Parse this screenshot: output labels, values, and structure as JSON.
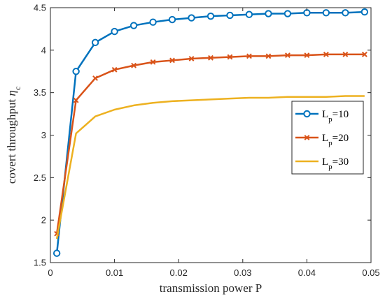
{
  "chart_data": {
    "type": "line",
    "xlabel": "transmission power P",
    "ylabel_main": "covert throughput ",
    "ylabel_symbol": "η",
    "ylabel_sub": "c",
    "xlim": [
      0,
      0.05
    ],
    "ylim": [
      1.5,
      4.5
    ],
    "xticks": [
      {
        "value": 0,
        "label": "0"
      },
      {
        "value": 0.01,
        "label": "0.01"
      },
      {
        "value": 0.02,
        "label": "0.02"
      },
      {
        "value": 0.03,
        "label": "0.03"
      },
      {
        "value": 0.04,
        "label": "0.04"
      },
      {
        "value": 0.05,
        "label": "0.05"
      }
    ],
    "yticks": [
      {
        "value": 1.5,
        "label": "1.5"
      },
      {
        "value": 2,
        "label": "2"
      },
      {
        "value": 2.5,
        "label": "2.5"
      },
      {
        "value": 3,
        "label": "3"
      },
      {
        "value": 3.5,
        "label": "3.5"
      },
      {
        "value": 4,
        "label": "4"
      },
      {
        "value": 4.5,
        "label": "4.5"
      }
    ],
    "grid": false,
    "legend_position": "right-middle",
    "x": [
      0.001,
      0.004,
      0.007,
      0.01,
      0.013,
      0.016,
      0.019,
      0.022,
      0.025,
      0.028,
      0.031,
      0.034,
      0.037,
      0.04,
      0.043,
      0.046,
      0.049
    ],
    "series": [
      {
        "name_main": "L",
        "name_sub": "p",
        "name_tail": "=10",
        "color": "#0072BD",
        "marker": "circle",
        "values": [
          1.61,
          3.75,
          4.09,
          4.22,
          4.29,
          4.33,
          4.36,
          4.38,
          4.4,
          4.41,
          4.42,
          4.43,
          4.43,
          4.44,
          4.44,
          4.44,
          4.45
        ]
      },
      {
        "name_main": "L",
        "name_sub": "p",
        "name_tail": "=20",
        "color": "#D95319",
        "marker": "x",
        "values": [
          1.84,
          3.41,
          3.67,
          3.77,
          3.82,
          3.86,
          3.88,
          3.9,
          3.91,
          3.92,
          3.93,
          3.93,
          3.94,
          3.94,
          3.95,
          3.95,
          3.95
        ]
      },
      {
        "name_main": "L",
        "name_sub": "p",
        "name_tail": "=30",
        "color": "#EDB120",
        "marker": "none",
        "values": [
          1.78,
          3.02,
          3.22,
          3.3,
          3.35,
          3.38,
          3.4,
          3.41,
          3.42,
          3.43,
          3.44,
          3.44,
          3.45,
          3.45,
          3.45,
          3.46,
          3.46
        ]
      }
    ]
  }
}
